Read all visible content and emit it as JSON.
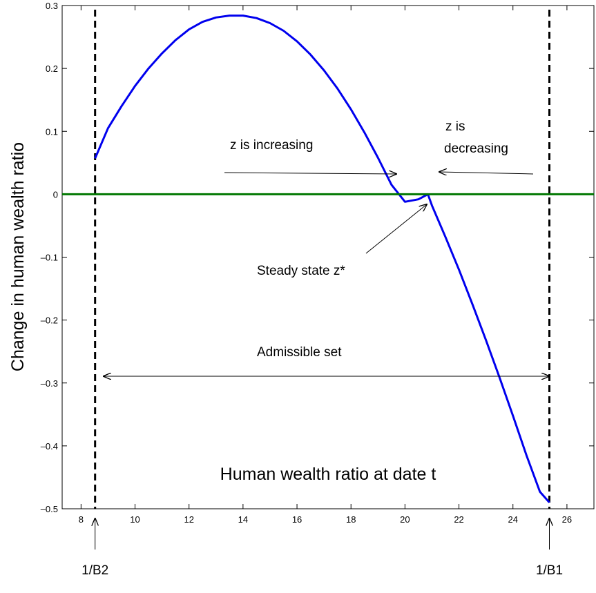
{
  "chart_data": {
    "type": "line",
    "title": "",
    "xlabel": "Human wealth ratio at date t",
    "ylabel": "Change in human wealth ratio",
    "xlim": [
      7.3,
      27.0
    ],
    "ylim": [
      -0.5,
      0.3
    ],
    "xticks": [
      8,
      10,
      12,
      14,
      16,
      18,
      20,
      22,
      24,
      26
    ],
    "yticks": [
      -0.5,
      -0.4,
      -0.3,
      -0.2,
      -0.1,
      0,
      0.1,
      0.2,
      0.3
    ],
    "xtick_labels": [
      "8",
      "10",
      "12",
      "14",
      "16",
      "18",
      "20",
      "22",
      "24",
      "26"
    ],
    "ytick_labels": [
      "–0.5",
      "–0.4",
      "–0.3",
      "–0.2",
      "–0.1",
      "0",
      "0.1",
      "0.2",
      "0.3"
    ],
    "grid": false,
    "series": [
      {
        "color": "#0000ee",
        "x": [
          8.52,
          9.0,
          9.5,
          10.0,
          10.5,
          11.0,
          11.5,
          12.0,
          12.5,
          13.0,
          13.5,
          14.0,
          14.5,
          15.0,
          15.5,
          16.0,
          16.5,
          17.0,
          17.5,
          18.0,
          18.5,
          19.0,
          19.5,
          20.0,
          20.5,
          20.85,
          21.0,
          21.5,
          22.0,
          22.5,
          23.0,
          23.5,
          24.0,
          24.5,
          25.0,
          25.35
        ],
        "y": [
          0.057,
          0.105,
          0.14,
          0.172,
          0.2,
          0.224,
          0.245,
          0.262,
          0.274,
          0.281,
          0.284,
          0.284,
          0.28,
          0.272,
          0.26,
          0.243,
          0.222,
          0.197,
          0.168,
          0.135,
          0.098,
          0.058,
          0.015,
          -0.012,
          -0.008,
          0.0,
          -0.018,
          -0.068,
          -0.12,
          -0.175,
          -0.232,
          -0.291,
          -0.352,
          -0.415,
          -0.473,
          -0.49
        ]
      },
      {
        "color": "#007700",
        "x": [
          7.3,
          27.0
        ],
        "y": [
          0,
          0
        ]
      }
    ],
    "vertical_markers": [
      {
        "x": 8.52,
        "label": "1/B2"
      },
      {
        "x": 25.35,
        "label": "1/B1"
      }
    ],
    "annotations": {
      "increasing": "z is increasing",
      "decreasing_line1": "z is",
      "decreasing_line2": "decreasing",
      "steady_state": "Steady state z*",
      "admissible": "Admissible set"
    },
    "colors": {
      "curve": "#0000ee",
      "zero_line": "#007700",
      "axes": "#000000"
    }
  }
}
